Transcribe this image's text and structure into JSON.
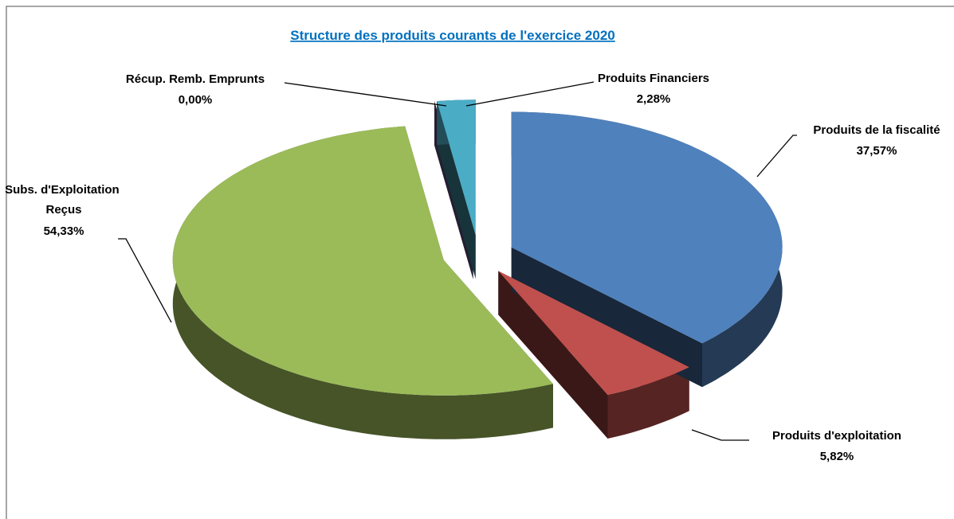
{
  "chart_data": {
    "type": "pie3d",
    "title": "Structure des produits courants de l'exercice 2020",
    "categories": [
      "Produits de la fiscalité",
      "Produits d'exploitation",
      "Subs. d'Exploitation Reçus",
      "Récup. Remb. Emprunts",
      "Produits Financiers"
    ],
    "values": [
      37.57,
      5.82,
      54.33,
      0.0,
      2.28
    ],
    "value_labels": [
      "37,57%",
      "5,82%",
      "54,33%",
      "0,00%",
      "2,28%"
    ],
    "colors": [
      "#4f81bd",
      "#c0504d",
      "#9bbb59",
      "#8064a2",
      "#4bacc6"
    ]
  }
}
